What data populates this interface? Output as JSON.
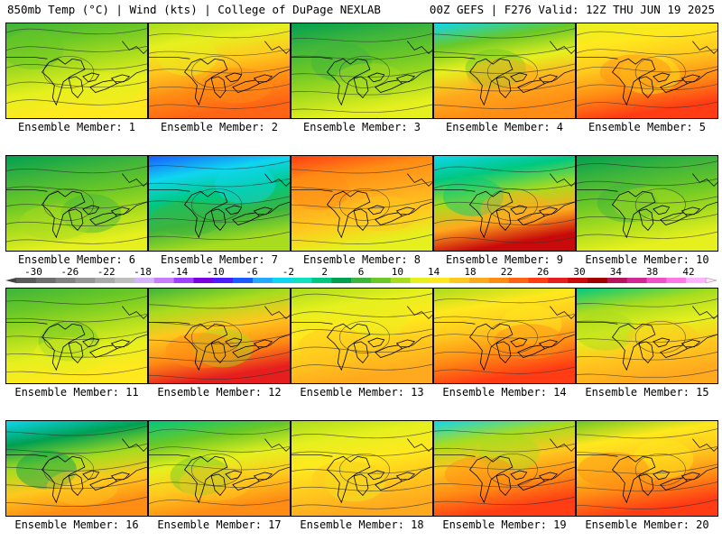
{
  "header": {
    "left": "850mb Temp (°C) | Wind (kts) | College of DuPage NEXLAB",
    "right": "00Z GEFS | F276 Valid: 12Z THU JUN 19 2025"
  },
  "colorbar": {
    "labels": [
      "-30",
      "-26",
      "-22",
      "-18",
      "-14",
      "-10",
      "-6",
      "-2",
      "2",
      "6",
      "10",
      "14",
      "18",
      "22",
      "26",
      "30",
      "34",
      "38",
      "42"
    ],
    "colors": [
      "#5a5a5a",
      "#6e6e6e",
      "#828282",
      "#969696",
      "#aaaaaa",
      "#bebebe",
      "#d4b4ff",
      "#c87dff",
      "#a040ff",
      "#7a00e0",
      "#4a1cff",
      "#1a5aff",
      "#27a8ff",
      "#0fd6f0",
      "#0fe0c0",
      "#00c880",
      "#00a050",
      "#3db43c",
      "#6ac826",
      "#a8dc1e",
      "#e6f01e",
      "#ffe81e",
      "#ffc81e",
      "#ffaa1e",
      "#ff8c14",
      "#ff6414",
      "#ff3c14",
      "#e61e1e",
      "#c80a0a",
      "#a00000",
      "#b4145a",
      "#d22896",
      "#f050c8",
      "#ff78e6",
      "#ffb4ff"
    ]
  },
  "members": [
    {
      "label": "Ensemble Member: 1",
      "palette": [
        "#3db43c",
        "#6ac826",
        "#a8dc1e",
        "#e6f01e",
        "#ffe81e"
      ]
    },
    {
      "label": "Ensemble Member: 2",
      "palette": [
        "#a8dc1e",
        "#e6f01e",
        "#ffc81e",
        "#ff8c14",
        "#ff6414"
      ]
    },
    {
      "label": "Ensemble Member: 3",
      "palette": [
        "#00a050",
        "#3db43c",
        "#6ac826",
        "#a8dc1e",
        "#e6f01e"
      ]
    },
    {
      "label": "Ensemble Member: 4",
      "palette": [
        "#0fd6f0",
        "#6ac826",
        "#e6f01e",
        "#ffaa1e",
        "#ff8c14"
      ]
    },
    {
      "label": "Ensemble Member: 5",
      "palette": [
        "#e6f01e",
        "#ffe81e",
        "#ffc81e",
        "#ff8c14",
        "#ff3c14"
      ]
    },
    {
      "label": "Ensemble Member: 6",
      "palette": [
        "#00a050",
        "#3db43c",
        "#6ac826",
        "#a8dc1e",
        "#e6f01e"
      ]
    },
    {
      "label": "Ensemble Member: 7",
      "palette": [
        "#1a5aff",
        "#0fd6f0",
        "#00c880",
        "#3db43c",
        "#a8dc1e"
      ]
    },
    {
      "label": "Ensemble Member: 8",
      "palette": [
        "#ff3c14",
        "#ff8c14",
        "#ffaa1e",
        "#ffc81e",
        "#e6f01e"
      ]
    },
    {
      "label": "Ensemble Member: 9",
      "palette": [
        "#0fd6f0",
        "#00c880",
        "#a8dc1e",
        "#ffaa1e",
        "#c80a0a"
      ]
    },
    {
      "label": "Ensemble Member: 10",
      "palette": [
        "#00a050",
        "#3db43c",
        "#6ac826",
        "#a8dc1e",
        "#e6f01e"
      ]
    },
    {
      "label": "Ensemble Member: 11",
      "palette": [
        "#3db43c",
        "#6ac826",
        "#a8dc1e",
        "#e6f01e",
        "#ffe81e"
      ]
    },
    {
      "label": "Ensemble Member: 12",
      "palette": [
        "#3db43c",
        "#a8dc1e",
        "#ffc81e",
        "#ff8c14",
        "#e61e1e"
      ]
    },
    {
      "label": "Ensemble Member: 13",
      "palette": [
        "#a8dc1e",
        "#e6f01e",
        "#ffe81e",
        "#ffc81e",
        "#ffaa1e"
      ]
    },
    {
      "label": "Ensemble Member: 14",
      "palette": [
        "#a8dc1e",
        "#ffe81e",
        "#ffc81e",
        "#ff8c14",
        "#ff3c14"
      ]
    },
    {
      "label": "Ensemble Member: 15",
      "palette": [
        "#00c880",
        "#a8dc1e",
        "#e6f01e",
        "#ffc81e",
        "#ffaa1e"
      ]
    },
    {
      "label": "Ensemble Member: 16",
      "palette": [
        "#0fd6f0",
        "#00a050",
        "#a8dc1e",
        "#ffc81e",
        "#ff8c14"
      ]
    },
    {
      "label": "Ensemble Member: 17",
      "palette": [
        "#00c880",
        "#6ac826",
        "#e6f01e",
        "#ffc81e",
        "#ff8c14"
      ]
    },
    {
      "label": "Ensemble Member: 18",
      "palette": [
        "#a8dc1e",
        "#e6f01e",
        "#ffe81e",
        "#ffc81e",
        "#ffaa1e"
      ]
    },
    {
      "label": "Ensemble Member: 19",
      "palette": [
        "#0fd6f0",
        "#a8dc1e",
        "#ffc81e",
        "#ff8c14",
        "#ff3c14"
      ]
    },
    {
      "label": "Ensemble Member: 20",
      "palette": [
        "#6ac826",
        "#ffe81e",
        "#ffc81e",
        "#ff8c14",
        "#ff3c14"
      ]
    }
  ]
}
